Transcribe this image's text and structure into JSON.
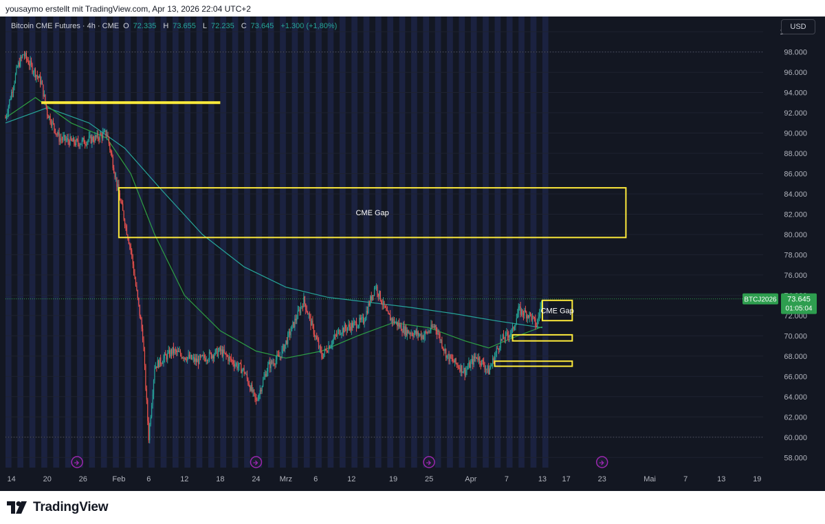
{
  "caption": "yousaymo erstellt mit TradingView.com, Apr 13, 2026 22:04 UTC+2",
  "legend": {
    "symbol": "Bitcoin CME Futures · 4h · CME",
    "open_label": "O",
    "open": "72.335",
    "high_label": "H",
    "high": "73.655",
    "low_label": "L",
    "low": "72.235",
    "close_label": "C",
    "close": "73.645",
    "change": "+1.300 (+1,80%)"
  },
  "currency": "USD",
  "price_tag": {
    "symbol": "BTCJ2026",
    "price": "73.645",
    "countdown": "01:05:04"
  },
  "brand": "TradingView",
  "colors": {
    "background": "#131722",
    "session_band": "#1b2240",
    "up": "#26a69a",
    "down": "#ef5350",
    "ma_fast": "#2ea043",
    "ma_slow": "#26a69a",
    "annotation": "#ffeb3b",
    "tag": "#2e9e4f",
    "event_marker": "#9c27b0"
  },
  "chart_data": {
    "type": "candlestick",
    "timeframe": "4h",
    "y_ticks": [
      "58.000",
      "60.000",
      "62.000",
      "64.000",
      "66.000",
      "68.000",
      "70.000",
      "72.000",
      "74.000",
      "76.000",
      "78.000",
      "80.000",
      "82.000",
      "84.000",
      "86.000",
      "88.000",
      "90.000",
      "92.000",
      "94.000",
      "96.000",
      "98.000",
      "100.000"
    ],
    "y_range": [
      57000,
      101500
    ],
    "x_ticks": [
      "14",
      "20",
      "26",
      "Feb",
      "6",
      "12",
      "18",
      "24",
      "Mrz",
      "6",
      "12",
      "19",
      "25",
      "Apr",
      "7",
      "13",
      "17",
      "23",
      "Mai",
      "7",
      "13",
      "19"
    ],
    "x_range": [
      "2026-01-13",
      "2026-05-20"
    ],
    "last_data_date": "2026-04-13",
    "trend_points": [
      [
        "2026-01-13",
        91500
      ],
      [
        "2026-01-15",
        96500
      ],
      [
        "2026-01-16",
        97800
      ],
      [
        "2026-01-19",
        95000
      ],
      [
        "2026-01-20",
        92000
      ],
      [
        "2026-01-22",
        89500
      ],
      [
        "2026-01-25",
        89000
      ],
      [
        "2026-01-28",
        89500
      ],
      [
        "2026-01-30",
        90000
      ],
      [
        "2026-02-01",
        84000
      ],
      [
        "2026-02-03",
        78500
      ],
      [
        "2026-02-05",
        70000
      ],
      [
        "2026-02-06",
        60000
      ],
      [
        "2026-02-07",
        67000
      ],
      [
        "2026-02-10",
        68500
      ],
      [
        "2026-02-14",
        67500
      ],
      [
        "2026-02-18",
        68500
      ],
      [
        "2026-02-22",
        66500
      ],
      [
        "2026-02-24",
        63500
      ],
      [
        "2026-02-26",
        67000
      ],
      [
        "2026-02-28",
        68000
      ],
      [
        "2026-03-04",
        73500
      ],
      [
        "2026-03-07",
        68000
      ],
      [
        "2026-03-10",
        70500
      ],
      [
        "2026-03-14",
        71500
      ],
      [
        "2026-03-16",
        75000
      ],
      [
        "2026-03-18",
        72000
      ],
      [
        "2026-03-21",
        70500
      ],
      [
        "2026-03-24",
        70000
      ],
      [
        "2026-03-26",
        71000
      ],
      [
        "2026-03-28",
        68000
      ],
      [
        "2026-03-31",
        66500
      ],
      [
        "2026-04-02",
        68000
      ],
      [
        "2026-04-04",
        66500
      ],
      [
        "2026-04-06",
        69500
      ],
      [
        "2026-04-08",
        70500
      ],
      [
        "2026-04-09",
        72500
      ],
      [
        "2026-04-11",
        72000
      ],
      [
        "2026-04-12",
        71000
      ],
      [
        "2026-04-13",
        73645
      ]
    ],
    "ma_fast_points": [
      [
        "2026-01-13",
        91500
      ],
      [
        "2026-01-18",
        93500
      ],
      [
        "2026-01-24",
        91000
      ],
      [
        "2026-01-30",
        89500
      ],
      [
        "2026-02-03",
        86000
      ],
      [
        "2026-02-07",
        80000
      ],
      [
        "2026-02-12",
        74000
      ],
      [
        "2026-02-18",
        70500
      ],
      [
        "2026-02-24",
        68500
      ],
      [
        "2026-03-01",
        67800
      ],
      [
        "2026-03-07",
        68500
      ],
      [
        "2026-03-13",
        70000
      ],
      [
        "2026-03-19",
        71300
      ],
      [
        "2026-03-25",
        70800
      ],
      [
        "2026-03-31",
        69500
      ],
      [
        "2026-04-04",
        68800
      ],
      [
        "2026-04-08",
        69800
      ],
      [
        "2026-04-13",
        70900
      ]
    ],
    "ma_slow_points": [
      [
        "2026-01-13",
        91000
      ],
      [
        "2026-01-20",
        92500
      ],
      [
        "2026-01-27",
        91000
      ],
      [
        "2026-02-02",
        88500
      ],
      [
        "2026-02-08",
        84500
      ],
      [
        "2026-02-15",
        80000
      ],
      [
        "2026-02-22",
        76800
      ],
      [
        "2026-03-01",
        74800
      ],
      [
        "2026-03-08",
        73800
      ],
      [
        "2026-03-15",
        73300
      ],
      [
        "2026-03-22",
        72800
      ],
      [
        "2026-03-29",
        72200
      ],
      [
        "2026-04-05",
        71500
      ],
      [
        "2026-04-13",
        70800
      ]
    ],
    "annotations": [
      {
        "type": "line",
        "from": [
          "2026-01-19",
          93000
        ],
        "to": [
          "2026-02-18",
          93000
        ]
      },
      {
        "type": "box",
        "from": [
          "2026-02-01",
          84600
        ],
        "to": [
          "2026-04-27",
          79700
        ],
        "label": "CME Gap"
      },
      {
        "type": "box",
        "from": [
          "2026-04-13",
          73500
        ],
        "to": [
          "2026-04-18",
          71500
        ],
        "label": "CME Gap"
      },
      {
        "type": "box",
        "from": [
          "2026-04-08",
          70100
        ],
        "to": [
          "2026-04-18",
          69500
        ],
        "label": ""
      },
      {
        "type": "box",
        "from": [
          "2026-04-05",
          67500
        ],
        "to": [
          "2026-04-18",
          67000
        ],
        "label": ""
      }
    ],
    "event_markers": [
      "2026-01-25",
      "2026-02-24",
      "2026-03-25",
      "2026-04-23"
    ],
    "last_price": 73645
  }
}
